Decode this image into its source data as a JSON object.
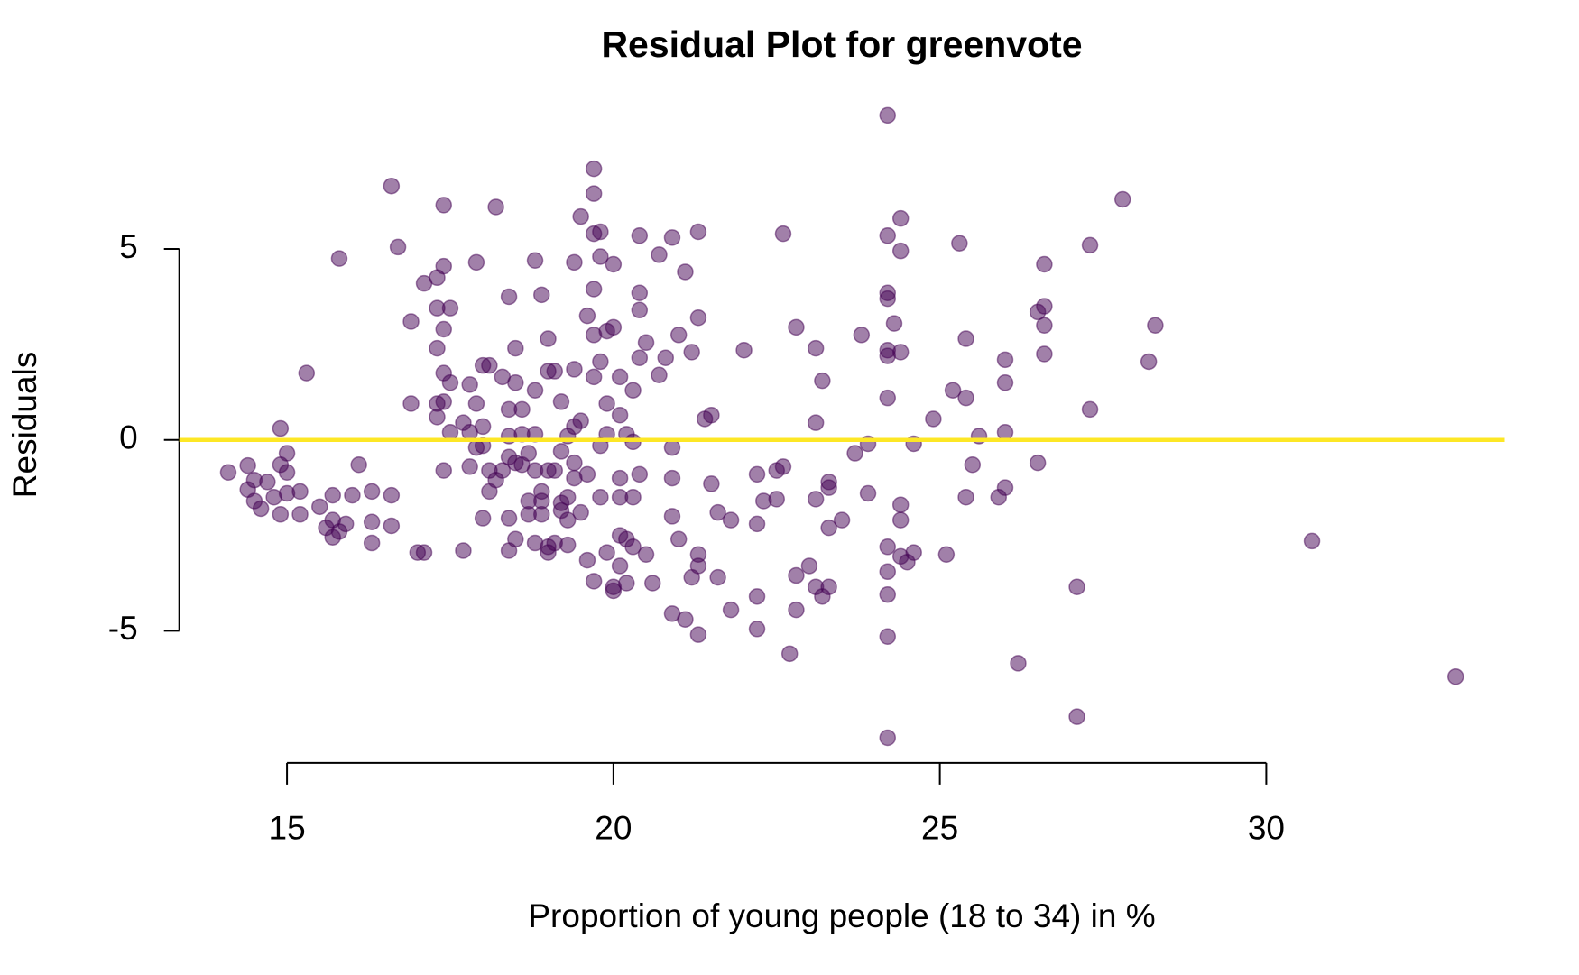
{
  "chart_data": {
    "type": "scatter",
    "title": "Residual Plot for greenvote",
    "x_label": "Proportion of young people (18 to 34) in %",
    "y_label": "Residuals",
    "point_color": "#440154",
    "point_opacity": 0.5,
    "hline": 0,
    "hline_color": "#FDE725",
    "xlim": [
      13.35,
      33.65
    ],
    "ylim": [
      -8.46,
      9.26
    ],
    "xticks": [
      15,
      20,
      25,
      30
    ],
    "yticks": [
      -5,
      0,
      5
    ],
    "x": [
      14.1,
      14.4,
      14.4,
      14.5,
      14.5,
      14.6,
      14.7,
      14.8,
      14.9,
      14.9,
      14.9,
      15.0,
      15.0,
      15.0,
      15.2,
      15.2,
      15.3,
      15.5,
      15.6,
      15.7,
      15.7,
      15.7,
      15.8,
      15.8,
      15.9,
      16.0,
      16.1,
      16.3,
      16.3,
      16.3,
      16.6,
      16.6,
      16.6,
      16.7,
      16.9,
      16.9,
      17.0,
      17.1,
      17.1,
      17.3,
      17.3,
      17.3,
      17.3,
      17.3,
      17.4,
      17.4,
      17.4,
      17.4,
      17.4,
      17.4,
      17.5,
      17.5,
      17.5,
      17.7,
      17.7,
      17.8,
      17.8,
      17.8,
      17.9,
      17.9,
      17.9,
      18.0,
      18.0,
      18.0,
      18.0,
      18.1,
      18.1,
      18.1,
      18.2,
      18.2,
      18.3,
      18.3,
      18.4,
      18.4,
      18.4,
      18.4,
      18.4,
      18.4,
      18.5,
      18.5,
      18.5,
      18.5,
      18.6,
      18.6,
      18.6,
      18.7,
      18.7,
      18.7,
      18.8,
      18.8,
      18.8,
      18.8,
      18.8,
      18.9,
      18.9,
      18.9,
      18.9,
      19.0,
      19.0,
      19.0,
      19.0,
      19.0,
      19.1,
      19.1,
      19.1,
      19.2,
      19.2,
      19.2,
      19.2,
      19.3,
      19.3,
      19.3,
      19.3,
      19.4,
      19.4,
      19.4,
      19.4,
      19.4,
      19.5,
      19.5,
      19.5,
      19.6,
      19.6,
      19.6,
      19.7,
      19.7,
      19.7,
      19.7,
      19.7,
      19.7,
      19.7,
      19.8,
      19.8,
      19.8,
      19.8,
      19.8,
      19.9,
      19.9,
      19.9,
      19.9,
      20.0,
      20.0,
      20.0,
      20.0,
      20.1,
      20.1,
      20.1,
      20.1,
      20.1,
      20.1,
      20.2,
      20.2,
      20.2,
      20.3,
      20.3,
      20.3,
      20.3,
      20.4,
      20.4,
      20.4,
      20.4,
      20.4,
      20.5,
      20.5,
      20.6,
      20.7,
      20.7,
      20.8,
      20.9,
      20.9,
      20.9,
      20.9,
      20.9,
      21.0,
      21.0,
      21.1,
      21.1,
      21.2,
      21.2,
      21.3,
      21.3,
      21.3,
      21.3,
      21.3,
      21.4,
      21.5,
      21.5,
      21.6,
      21.6,
      21.8,
      21.8,
      22.0,
      22.2,
      22.2,
      22.2,
      22.2,
      22.3,
      22.5,
      22.5,
      22.6,
      22.6,
      22.7,
      22.8,
      22.8,
      22.8,
      23.0,
      23.1,
      23.1,
      23.1,
      23.1,
      23.2,
      23.2,
      23.3,
      23.3,
      23.3,
      23.3,
      23.5,
      23.7,
      23.8,
      23.9,
      23.9,
      24.2,
      24.2,
      24.2,
      24.2,
      24.2,
      24.2,
      24.2,
      24.2,
      24.2,
      24.2,
      24.2,
      24.2,
      24.3,
      24.4,
      24.4,
      24.4,
      24.4,
      24.4,
      24.4,
      24.5,
      24.6,
      24.6,
      24.9,
      25.1,
      25.2,
      25.3,
      25.4,
      25.4,
      25.4,
      25.5,
      25.6,
      25.9,
      26.0,
      26.0,
      26.0,
      26.0,
      26.2,
      26.5,
      26.5,
      26.6,
      26.6,
      26.6,
      26.6,
      27.1,
      27.1,
      27.3,
      27.3,
      27.8,
      28.2,
      28.3,
      30.7,
      32.9
    ],
    "values": [
      -0.85,
      -0.67,
      -1.3,
      -1.05,
      -1.6,
      -1.8,
      -1.1,
      -1.5,
      0.3,
      -0.65,
      -1.95,
      -0.35,
      -0.85,
      -1.4,
      -1.35,
      -1.95,
      1.75,
      -1.75,
      -2.3,
      -1.45,
      -2.55,
      -2.1,
      4.75,
      -2.4,
      -2.2,
      -1.45,
      -0.65,
      -1.35,
      -2.15,
      -2.7,
      6.65,
      -1.45,
      -2.25,
      5.05,
      3.1,
      0.95,
      -2.95,
      -2.95,
      4.1,
      4.25,
      3.45,
      2.4,
      0.95,
      0.6,
      6.15,
      4.55,
      2.9,
      1.75,
      1.0,
      -0.8,
      3.45,
      1.5,
      0.2,
      0.45,
      -2.9,
      1.45,
      0.2,
      -0.7,
      4.65,
      0.95,
      -0.2,
      1.95,
      0.35,
      -0.15,
      -2.05,
      1.95,
      -0.8,
      -1.35,
      6.1,
      -1.05,
      1.65,
      -0.8,
      3.75,
      0.8,
      0.1,
      -0.45,
      -2.05,
      -2.9,
      2.4,
      1.5,
      -0.6,
      -2.6,
      0.8,
      0.15,
      -0.65,
      -0.35,
      -1.6,
      -1.95,
      4.7,
      1.3,
      0.15,
      -0.8,
      -2.7,
      3.8,
      -1.35,
      -1.6,
      -1.95,
      2.65,
      1.8,
      -0.8,
      -2.8,
      -2.95,
      1.8,
      -0.8,
      -2.7,
      1.0,
      -0.3,
      -1.65,
      -1.85,
      0.1,
      -1.5,
      -2.1,
      -2.75,
      4.65,
      1.85,
      0.35,
      -0.6,
      -1.0,
      5.85,
      0.5,
      -1.9,
      3.25,
      -0.9,
      -3.15,
      7.1,
      6.45,
      5.4,
      3.95,
      2.75,
      1.65,
      -3.7,
      5.45,
      4.8,
      2.05,
      -0.15,
      -1.5,
      2.85,
      0.95,
      0.15,
      -2.95,
      4.6,
      2.95,
      -3.85,
      -3.95,
      1.65,
      0.65,
      -1.0,
      -1.5,
      -2.5,
      -3.3,
      0.15,
      -2.6,
      -3.75,
      1.3,
      -0.05,
      -1.5,
      -2.8,
      5.35,
      3.85,
      3.4,
      2.15,
      -0.9,
      2.55,
      -3.0,
      -3.75,
      4.85,
      1.7,
      2.15,
      5.3,
      -0.2,
      -1.0,
      -2.0,
      -4.55,
      2.75,
      -2.6,
      4.4,
      -4.7,
      2.3,
      -3.6,
      5.45,
      3.2,
      -3.0,
      -3.3,
      -5.1,
      0.55,
      0.65,
      -1.15,
      -1.9,
      -3.6,
      -2.1,
      -4.45,
      2.35,
      -0.9,
      -2.2,
      -4.1,
      -4.95,
      -1.6,
      -1.55,
      -0.8,
      5.4,
      -0.7,
      -5.6,
      2.95,
      -3.55,
      -4.45,
      -3.3,
      2.4,
      0.45,
      -1.55,
      -3.85,
      1.55,
      -4.1,
      -1.1,
      -1.25,
      -2.3,
      -3.85,
      -2.1,
      -0.35,
      2.75,
      -0.1,
      -1.4,
      8.5,
      5.35,
      3.85,
      3.7,
      2.35,
      2.2,
      1.1,
      -2.8,
      -3.45,
      -4.05,
      -5.15,
      -7.8,
      3.05,
      5.8,
      4.95,
      2.3,
      -1.7,
      -2.1,
      -3.05,
      -3.2,
      -0.1,
      -2.95,
      0.55,
      -3.0,
      1.3,
      5.15,
      2.65,
      1.1,
      -1.5,
      -0.65,
      0.1,
      -1.5,
      2.1,
      1.5,
      0.2,
      -1.25,
      -5.85,
      -0.6,
      3.35,
      4.6,
      3.5,
      3.0,
      2.25,
      -3.85,
      -7.25,
      5.1,
      0.8,
      6.3,
      2.05,
      3.0,
      -2.65,
      -6.2
    ]
  }
}
